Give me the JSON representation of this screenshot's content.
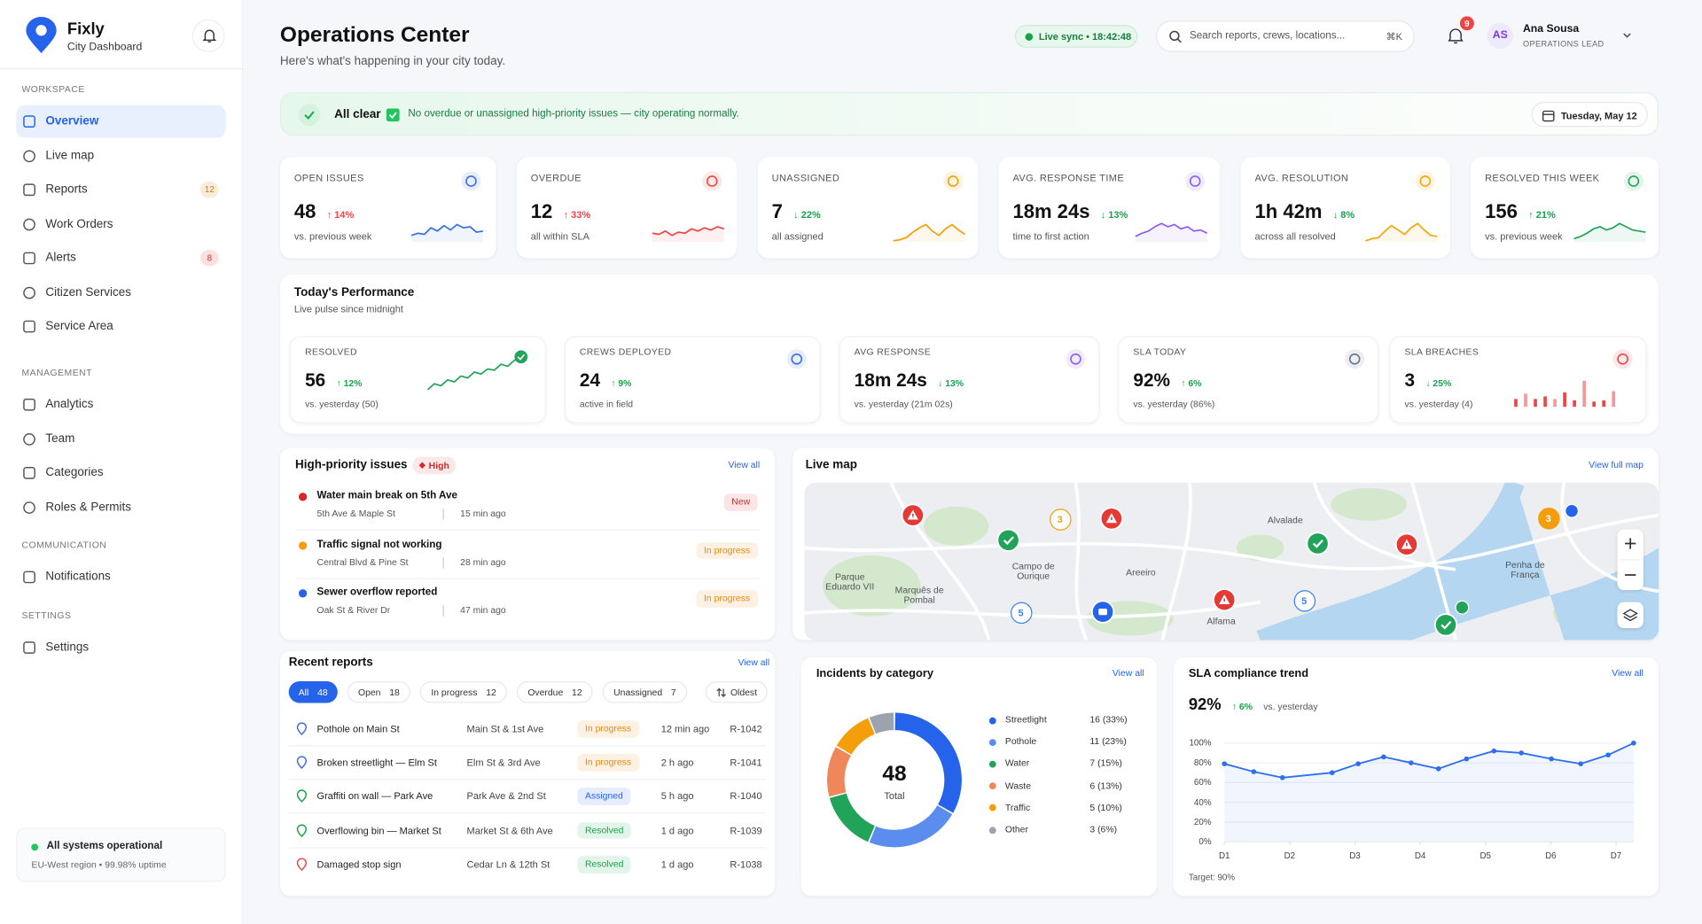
{
  "sidebar": {
    "brand": "Fixly",
    "brand_subtitle": "City Dashboard",
    "sections": [
      {
        "title": "WORKSPACE",
        "items": [
          {
            "label": "Overview",
            "active": true
          },
          {
            "label": "Live map"
          },
          {
            "label": "Reports",
            "badge": "12",
            "badge_color": "#d97706"
          },
          {
            "label": "Work Orders"
          },
          {
            "label": "Alerts",
            "badge": "8",
            "badge_color": "#dc2626"
          },
          {
            "label": "Citizen Services"
          },
          {
            "label": "Service Area"
          }
        ]
      },
      {
        "title": "MANAGEMENT",
        "items": [
          {
            "label": "Analytics"
          },
          {
            "label": "Team"
          },
          {
            "label": "Categories"
          },
          {
            "label": "Roles & Permits"
          }
        ]
      },
      {
        "title": "COMMUNICATION",
        "items": [
          {
            "label": "Notifications"
          }
        ]
      },
      {
        "title": "SETTINGS",
        "items": [
          {
            "label": "Settings"
          }
        ]
      }
    ],
    "status": {
      "title": "All systems operational",
      "detail": "EU-West region • 99.98% uptime"
    }
  },
  "header": {
    "title": "Operations Center",
    "subtitle": "Here's what's happening in your city today.",
    "live_sync": "Live sync • 18:42:48",
    "search_placeholder": "Search reports, crews, locations...",
    "search_shortcut": "⌘K",
    "notification_count": "9",
    "user": {
      "initials": "AS",
      "name": "Ana Sousa",
      "role": "OPERATIONS LEAD"
    }
  },
  "banner": {
    "title": "All clear",
    "message": "No overdue or unassigned high-priority issues — city operating normally.",
    "date": "Tuesday, May 12"
  },
  "kpis": [
    {
      "label": "OPEN ISSUES",
      "value": "48",
      "change": "↑ 14%",
      "change_color": "#ef4444",
      "note": "vs. previous week",
      "color": "#3b6fe0"
    },
    {
      "label": "OVERDUE",
      "value": "12",
      "change": "↑ 33%",
      "change_color": "#ef4444",
      "note": "all within SLA",
      "color": "#ef4444"
    },
    {
      "label": "UNASSIGNED",
      "value": "7",
      "change": "↓ 22%",
      "change_color": "#16a34a",
      "note": "all assigned",
      "color": "#f59e0b"
    },
    {
      "label": "AVG. RESPONSE TIME",
      "value": "18m 24s",
      "change": "↓ 13%",
      "change_color": "#16a34a",
      "note": "time to first action",
      "color": "#8b5cf6"
    },
    {
      "label": "AVG. RESOLUTION",
      "value": "1h 42m",
      "change": "↓ 8%",
      "change_color": "#16a34a",
      "note": "across all resolved",
      "color": "#f5a70b"
    },
    {
      "label": "RESOLVED THIS WEEK",
      "value": "156",
      "change": "↑ 21%",
      "change_color": "#16a34a",
      "note": "vs. previous week",
      "color": "#22a35a"
    }
  ],
  "performance": {
    "title": "Today's Performance",
    "subtitle": "Live pulse since midnight",
    "cards": [
      {
        "label": "RESOLVED",
        "value": "56",
        "change": "↑ 12%",
        "change_color": "#16a34a",
        "note": "vs. yesterday (50)",
        "color": "#22a35a"
      },
      {
        "label": "CREWS DEPLOYED",
        "value": "24",
        "change": "↑ 9%",
        "change_color": "#16a34a",
        "note": "active in field",
        "color": "#3b6fe0"
      },
      {
        "label": "AVG RESPONSE",
        "value": "18m 24s",
        "change": "↓ 13%",
        "change_color": "#16a34a",
        "note": "vs. yesterday (21m 02s)",
        "color": "#8b5cf6"
      },
      {
        "label": "SLA TODAY",
        "value": "92%",
        "change": "↑ 6%",
        "change_color": "#16a34a",
        "note": "vs. yesterday (86%)",
        "color": "#64748b"
      },
      {
        "label": "SLA BREACHES",
        "value": "3",
        "change": "↓ 25%",
        "change_color": "#16a34a",
        "note": "vs. yesterday (4)",
        "color": "#ef4444"
      }
    ]
  },
  "high_priority": {
    "title": "High-priority issues",
    "badge": "High",
    "link": "View all",
    "items": [
      {
        "title": "Water main break on 5th Ave",
        "location": "5th Ave & Maple St",
        "time": "15 min ago",
        "status": "New",
        "status_color": "#dc2626",
        "dot_color": "#dc2626"
      },
      {
        "title": "Traffic signal not working",
        "location": "Central Blvd & Pine St",
        "time": "28 min ago",
        "status": "In progress",
        "status_color": "#e88a0c",
        "dot_color": "#f59e0b"
      },
      {
        "title": "Sewer overflow reported",
        "location": "Oak St & River Dr",
        "time": "47 min ago",
        "status": "In progress",
        "status_color": "#e88a0c",
        "dot_color": "#2563eb"
      }
    ]
  },
  "recent_reports": {
    "title": "Recent reports",
    "link": "View all",
    "filters": [
      {
        "label": "All",
        "count": "48",
        "active": true
      },
      {
        "label": "Open",
        "count": "18"
      },
      {
        "label": "In progress",
        "count": "12"
      },
      {
        "label": "Overdue",
        "count": "12"
      },
      {
        "label": "Unassigned",
        "count": "7"
      }
    ],
    "sort": "Oldest",
    "rows": [
      {
        "title": "Pothole on Main St",
        "location": "Main St & 1st Ave",
        "status": "In progress",
        "status_color": "#e88a0c",
        "time": "12 min ago",
        "id": "R-1042",
        "icon_color": "#3b6fe0"
      },
      {
        "title": "Broken streetlight — Elm St",
        "location": "Elm St & 3rd Ave",
        "status": "In progress",
        "status_color": "#e88a0c",
        "time": "2 h ago",
        "id": "R-1041",
        "icon_color": "#3b6fe0"
      },
      {
        "title": "Graffiti on wall — Park Ave",
        "location": "Park Ave & 2nd St",
        "status": "Assigned",
        "status_color": "#2563eb",
        "time": "5 h ago",
        "id": "R-1040",
        "icon_color": "#16a34a"
      },
      {
        "title": "Overflowing bin — Market St",
        "location": "Market St & 6th Ave",
        "status": "Resolved",
        "status_color": "#16a34a",
        "time": "1 d ago",
        "id": "R-1039",
        "icon_color": "#16a34a"
      },
      {
        "title": "Damaged stop sign",
        "location": "Cedar Ln & 12th St",
        "status": "Resolved",
        "status_color": "#16a34a",
        "time": "1 d ago",
        "id": "R-1038",
        "icon_color": "#ef4444"
      }
    ]
  },
  "map": {
    "title": "Live map",
    "link": "View full map",
    "places": [
      "Parque Eduardo VII",
      "Marquês de Pombal",
      "Campo de Ourique",
      "Areeiro",
      "Alvalade",
      "Alfama",
      "Penha de França"
    ],
    "clusters": [
      {
        "count": "3",
        "color": "#f59e0b"
      },
      {
        "count": "3",
        "color": "#f59e0b"
      },
      {
        "count": "5",
        "color": "#3b82f6"
      },
      {
        "count": "5",
        "color": "#3b82f6"
      }
    ]
  },
  "incidents": {
    "type": "pie",
    "title": "Incidents by category",
    "link": "View all",
    "total": "48",
    "total_label": "Total",
    "categories": [
      "Streetlight",
      "Pothole",
      "Water",
      "Waste",
      "Traffic",
      "Other"
    ],
    "values": [
      16,
      11,
      7,
      6,
      5,
      3
    ],
    "value_labels": [
      "16 (33%)",
      "11 (23%)",
      "7 (15%)",
      "6 (13%)",
      "5 (10%)",
      "3 (6%)"
    ],
    "colors": [
      "#2563eb",
      "#5b8def",
      "#22a35a",
      "#f0875a",
      "#f59e0b",
      "#9ca3af"
    ]
  },
  "sla": {
    "type": "line",
    "title": "SLA compliance trend",
    "link": "View all",
    "headline": "92%",
    "change": "↑ 6%",
    "change_note": "vs. yesterday",
    "x": [
      1,
      1.45,
      1.89,
      2.65,
      3.05,
      3.44,
      3.86,
      4.28,
      4.71,
      5.13,
      5.55,
      6.01,
      6.46,
      6.88,
      7.27
    ],
    "values": [
      79,
      71,
      65,
      70,
      79,
      86,
      80,
      74,
      84,
      92,
      90,
      84,
      79,
      88,
      100
    ],
    "xlim": [
      1,
      7.27
    ],
    "xticks": [
      {
        "value": 1,
        "label": "D1"
      },
      {
        "value": 2,
        "label": "D2"
      },
      {
        "value": 3,
        "label": "D3"
      },
      {
        "value": 4,
        "label": "D4"
      },
      {
        "value": 5,
        "label": "D5"
      },
      {
        "value": 6,
        "label": "D6"
      },
      {
        "value": 7,
        "label": "D7"
      }
    ],
    "ylim": [
      0,
      100
    ],
    "yticks": [
      {
        "value": 0,
        "label": "0%"
      },
      {
        "value": 20,
        "label": "20%"
      },
      {
        "value": 40,
        "label": "40%"
      },
      {
        "value": 60,
        "label": "60%"
      },
      {
        "value": 80,
        "label": "80%"
      },
      {
        "value": 100,
        "label": "100%"
      }
    ],
    "grid": true,
    "color": "#2f6fed",
    "target": "Target: 90%"
  }
}
